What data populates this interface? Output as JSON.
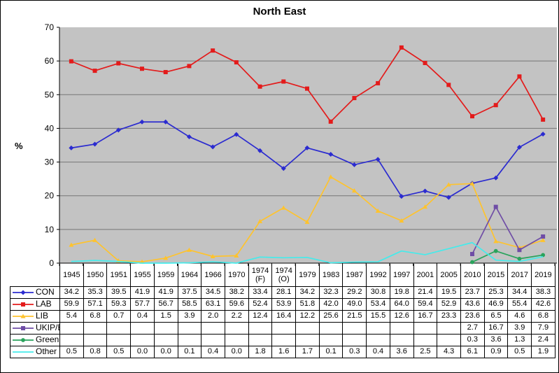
{
  "title": "North East",
  "chart_data": {
    "type": "line",
    "title": "North East",
    "xlabel": "",
    "ylabel": "%",
    "ylim": [
      0,
      70
    ],
    "ytick_step": 10,
    "yticks": [
      "0",
      "10",
      "20",
      "30",
      "40",
      "50",
      "60",
      "70"
    ],
    "grid": true,
    "legend_position": "attached-data-table-left",
    "plot_background": "#c3c3c3",
    "gridline_color": "#767676",
    "axis_color": "#000000",
    "categories": [
      "1945",
      "1950",
      "1951",
      "1955",
      "1959",
      "1964",
      "1966",
      "1970",
      "1974 (F)",
      "1974 (O)",
      "1979",
      "1983",
      "1987",
      "1992",
      "1997",
      "2001",
      "2005",
      "2010",
      "2015",
      "2017",
      "2019"
    ],
    "series": [
      {
        "name": "CON",
        "color": "#2b2bd0",
        "marker": "diamond",
        "values": [
          34.2,
          35.3,
          39.5,
          41.9,
          41.9,
          37.5,
          34.5,
          38.2,
          33.4,
          28.1,
          34.2,
          32.3,
          29.2,
          30.8,
          19.8,
          21.4,
          19.5,
          23.7,
          25.3,
          34.4,
          38.3
        ]
      },
      {
        "name": "LAB",
        "color": "#e31b1b",
        "marker": "square",
        "values": [
          59.9,
          57.1,
          59.3,
          57.7,
          56.7,
          58.5,
          63.1,
          59.6,
          52.4,
          53.9,
          51.8,
          42.0,
          49.0,
          53.4,
          64.0,
          59.4,
          52.9,
          43.6,
          46.9,
          55.4,
          42.6
        ]
      },
      {
        "name": "LIB",
        "color": "#fec32e",
        "marker": "triangle",
        "values": [
          5.4,
          6.8,
          0.7,
          0.4,
          1.5,
          3.9,
          2.0,
          2.2,
          12.4,
          16.4,
          12.2,
          25.6,
          21.5,
          15.5,
          12.6,
          16.7,
          23.3,
          23.6,
          6.5,
          4.6,
          6.8
        ]
      },
      {
        "name": "UKIP/Br",
        "color": "#6f4da6",
        "marker": "square",
        "values": [
          null,
          null,
          null,
          null,
          null,
          null,
          null,
          null,
          null,
          null,
          null,
          null,
          null,
          null,
          null,
          null,
          null,
          2.7,
          16.7,
          3.9,
          7.9
        ]
      },
      {
        "name": "Green",
        "color": "#2aa35c",
        "marker": "circle",
        "values": [
          null,
          null,
          null,
          null,
          null,
          null,
          null,
          null,
          null,
          null,
          null,
          null,
          null,
          null,
          null,
          null,
          null,
          0.3,
          3.6,
          1.3,
          2.4
        ]
      },
      {
        "name": "Other",
        "color": "#45ebeb",
        "marker": "none",
        "values": [
          0.5,
          0.8,
          0.5,
          0.0,
          0.0,
          0.1,
          0.4,
          0.0,
          1.8,
          1.6,
          1.7,
          0.1,
          0.3,
          0.4,
          3.6,
          2.5,
          4.3,
          6.1,
          0.9,
          0.5,
          1.9
        ]
      }
    ]
  }
}
